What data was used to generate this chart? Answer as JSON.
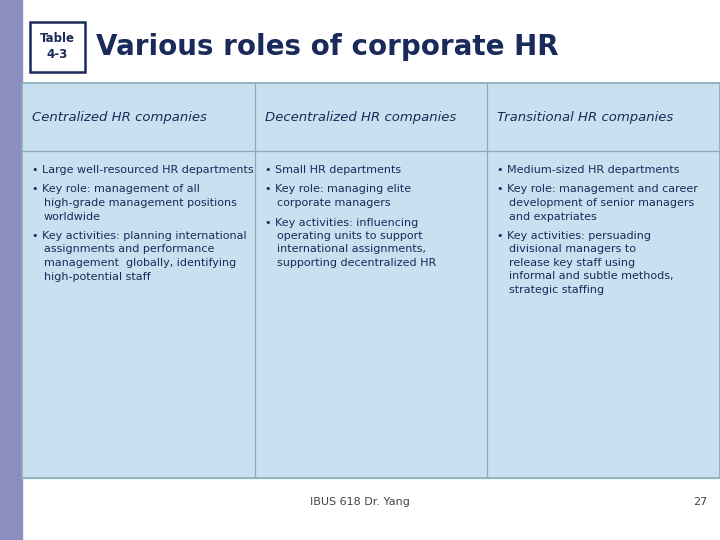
{
  "title": "Various roles of corporate HR",
  "table_label": "Table\n4-3",
  "bg_color": "#ffffff",
  "left_bar_color": "#8b8fbd",
  "top_right_bar_color": "#c8c8a0",
  "top_right_bar_color2": "#7a7a90",
  "table_bg_color": "#c8e0f0",
  "table_border_color": "#8aabb8",
  "header_color": "#1a2a5a",
  "title_color": "#1a2a5a",
  "body_text_color": "#1a2a5a",
  "footer_text": "IBUS 618 Dr. Yang",
  "footer_page": "27",
  "columns": [
    {
      "header": "Centralized HR companies",
      "bullets": [
        "Large well-resourced HR departments",
        "Key role: management of all\nhigh-grade management positions\nworldwide",
        "Key activities: planning international\nassignments and performance\nmanagement  globally, identifying\nhigh-potential staff"
      ]
    },
    {
      "header": "Decentralized HR companies",
      "bullets": [
        "Small HR departments",
        "Key role: managing elite\ncorporate managers",
        "Key activities: influencing\noperating units to support\ninternational assignments,\nsupporting decentralized HR"
      ]
    },
    {
      "header": "Transitional HR companies",
      "bullets": [
        "Medium-sized HR departments",
        "Key role: management and career\ndevelopment of senior managers\nand expatriates",
        "Key activities: persuading\ndivisional managers to\nrelease key staff using\ninformal and subtle methods,\nstrategic staffing"
      ]
    }
  ]
}
